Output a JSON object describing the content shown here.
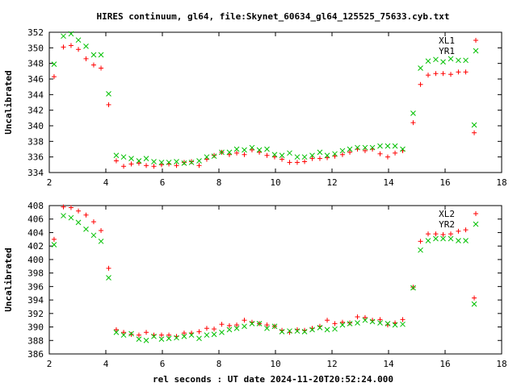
{
  "title": "HIRES continuum, gl64, file:Skynet_60634_gl64_125525_75633.cyb.txt",
  "xlabel": "rel seconds : UT date 2024-11-20T20:52:24.000",
  "chart_data": [
    {
      "type": "scatter",
      "ylabel": "Uncalibrated",
      "xlim": [
        2,
        18
      ],
      "ylim": [
        334,
        352
      ],
      "x_ticks": [
        "2",
        "4",
        "6",
        "8",
        "10",
        "12",
        "14",
        "16",
        "18"
      ],
      "y_ticks": [
        "334",
        "336",
        "338",
        "340",
        "342",
        "344",
        "346",
        "348",
        "350",
        "352"
      ],
      "x_tick_values": [
        2,
        4,
        6,
        8,
        10,
        12,
        14,
        16,
        18
      ],
      "y_tick_values": [
        334,
        336,
        338,
        340,
        342,
        344,
        346,
        348,
        350,
        352
      ],
      "legend_position": "top-right",
      "series": [
        {
          "name": "XL1",
          "marker": "plus",
          "color": "#ff0000",
          "x": [
            2.17,
            2.5,
            2.77,
            3.03,
            3.3,
            3.57,
            3.83,
            4.1,
            4.37,
            4.63,
            4.9,
            5.17,
            5.43,
            5.7,
            5.97,
            6.23,
            6.5,
            6.77,
            7.03,
            7.3,
            7.57,
            7.83,
            8.1,
            8.37,
            8.63,
            8.9,
            9.17,
            9.43,
            9.7,
            9.97,
            10.23,
            10.5,
            10.77,
            11.03,
            11.3,
            11.57,
            11.83,
            12.1,
            12.37,
            12.63,
            12.9,
            13.17,
            13.43,
            13.7,
            13.97,
            14.23,
            14.5,
            14.87,
            15.13,
            15.4,
            15.67,
            15.93,
            16.2,
            16.47,
            16.73,
            17.03
          ],
          "y": [
            346.3,
            350.1,
            350.3,
            349.8,
            348.6,
            347.8,
            347.4,
            342.7,
            335.5,
            334.8,
            335.1,
            335.2,
            334.9,
            334.8,
            335.0,
            335.1,
            334.9,
            335.3,
            335.4,
            334.9,
            335.7,
            336.2,
            336.6,
            336.3,
            336.5,
            336.3,
            336.9,
            336.6,
            336.2,
            336.0,
            335.7,
            335.3,
            335.3,
            335.4,
            335.8,
            335.8,
            335.9,
            336.1,
            336.3,
            336.6,
            337.0,
            336.8,
            337.0,
            336.4,
            336.0,
            336.5,
            336.8,
            340.4,
            345.3,
            346.5,
            346.7,
            346.7,
            346.6,
            346.9,
            346.9,
            339.1
          ]
        },
        {
          "name": "YR1",
          "marker": "cross",
          "color": "#00c000",
          "x": [
            2.17,
            2.5,
            2.77,
            3.03,
            3.3,
            3.57,
            3.83,
            4.1,
            4.37,
            4.63,
            4.9,
            5.17,
            5.43,
            5.7,
            5.97,
            6.23,
            6.5,
            6.77,
            7.03,
            7.3,
            7.57,
            7.83,
            8.1,
            8.37,
            8.63,
            8.9,
            9.17,
            9.43,
            9.7,
            9.97,
            10.23,
            10.5,
            10.77,
            11.03,
            11.3,
            11.57,
            11.83,
            12.1,
            12.37,
            12.63,
            12.9,
            13.17,
            13.43,
            13.7,
            13.97,
            14.23,
            14.5,
            14.87,
            15.13,
            15.4,
            15.67,
            15.93,
            16.2,
            16.47,
            16.73,
            17.03
          ],
          "y": [
            347.9,
            351.5,
            351.8,
            351.0,
            350.2,
            349.1,
            349.1,
            344.1,
            336.2,
            336.0,
            335.8,
            335.5,
            335.8,
            335.4,
            335.3,
            335.3,
            335.4,
            335.2,
            335.3,
            335.5,
            336.0,
            336.1,
            336.6,
            336.6,
            337.0,
            336.9,
            337.2,
            336.9,
            337.0,
            336.3,
            336.2,
            336.5,
            336.0,
            336.0,
            336.2,
            336.6,
            336.2,
            336.4,
            336.8,
            337.0,
            337.2,
            337.2,
            337.2,
            337.4,
            337.4,
            337.4,
            337.0,
            341.6,
            347.4,
            348.3,
            348.5,
            348.2,
            348.6,
            348.4,
            348.4,
            340.1
          ]
        }
      ]
    },
    {
      "type": "scatter",
      "ylabel": "Uncalibrated",
      "xlim": [
        2,
        18
      ],
      "ylim": [
        386,
        408
      ],
      "x_ticks": [
        "2",
        "4",
        "6",
        "8",
        "10",
        "12",
        "14",
        "16",
        "18"
      ],
      "y_ticks": [
        "386",
        "388",
        "390",
        "392",
        "394",
        "396",
        "398",
        "400",
        "402",
        "404",
        "406",
        "408"
      ],
      "x_tick_values": [
        2,
        4,
        6,
        8,
        10,
        12,
        14,
        16,
        18
      ],
      "y_tick_values": [
        386,
        388,
        390,
        392,
        394,
        396,
        398,
        400,
        402,
        404,
        406,
        408
      ],
      "legend_position": "top-right",
      "series": [
        {
          "name": "XL2",
          "marker": "plus",
          "color": "#ff0000",
          "x": [
            2.17,
            2.5,
            2.77,
            3.03,
            3.3,
            3.57,
            3.83,
            4.1,
            4.37,
            4.63,
            4.9,
            5.17,
            5.43,
            5.7,
            5.97,
            6.23,
            6.5,
            6.77,
            7.03,
            7.3,
            7.57,
            7.83,
            8.1,
            8.37,
            8.63,
            8.9,
            9.17,
            9.43,
            9.7,
            9.97,
            10.23,
            10.5,
            10.77,
            11.03,
            11.3,
            11.57,
            11.83,
            12.1,
            12.37,
            12.63,
            12.9,
            13.17,
            13.43,
            13.7,
            13.97,
            14.23,
            14.5,
            14.87,
            15.13,
            15.4,
            15.67,
            15.93,
            16.2,
            16.47,
            16.73,
            17.03
          ],
          "y": [
            403.0,
            407.8,
            407.7,
            407.2,
            406.6,
            405.6,
            404.3,
            398.7,
            389.6,
            389.2,
            388.9,
            388.8,
            389.2,
            388.8,
            388.8,
            388.8,
            388.6,
            389.1,
            389.1,
            389.3,
            389.8,
            389.7,
            390.4,
            390.2,
            390.3,
            391.0,
            390.7,
            390.5,
            390.3,
            390.1,
            389.5,
            389.2,
            389.6,
            389.5,
            389.8,
            390.1,
            391.0,
            390.5,
            390.7,
            390.6,
            391.5,
            391.4,
            391.0,
            391.1,
            390.3,
            390.6,
            391.1,
            395.9,
            402.7,
            403.8,
            403.8,
            403.7,
            403.8,
            404.2,
            404.4,
            394.3
          ]
        },
        {
          "name": "YR2",
          "marker": "cross",
          "color": "#00c000",
          "x": [
            2.17,
            2.5,
            2.77,
            3.03,
            3.3,
            3.57,
            3.83,
            4.1,
            4.37,
            4.63,
            4.9,
            5.17,
            5.43,
            5.7,
            5.97,
            6.23,
            6.5,
            6.77,
            7.03,
            7.3,
            7.57,
            7.83,
            8.1,
            8.37,
            8.63,
            8.9,
            9.17,
            9.43,
            9.7,
            9.97,
            10.23,
            10.5,
            10.77,
            11.03,
            11.3,
            11.57,
            11.83,
            12.1,
            12.37,
            12.63,
            12.9,
            13.17,
            13.43,
            13.7,
            13.97,
            14.23,
            14.5,
            14.87,
            15.13,
            15.4,
            15.67,
            15.93,
            16.2,
            16.47,
            16.73,
            17.03
          ],
          "y": [
            402.2,
            406.5,
            406.2,
            405.5,
            404.5,
            403.6,
            402.7,
            397.3,
            389.2,
            388.8,
            389.0,
            388.2,
            388.0,
            388.6,
            388.2,
            388.3,
            388.4,
            388.6,
            388.8,
            388.3,
            388.8,
            388.9,
            389.2,
            389.6,
            389.8,
            390.1,
            390.5,
            390.5,
            389.8,
            390.1,
            389.3,
            389.4,
            389.4,
            389.3,
            389.6,
            389.9,
            389.6,
            389.7,
            390.3,
            390.5,
            390.6,
            391.0,
            390.8,
            390.6,
            390.5,
            390.3,
            390.4,
            395.8,
            401.4,
            402.8,
            403.1,
            403.1,
            403.1,
            402.8,
            402.8,
            393.4
          ]
        }
      ]
    }
  ]
}
